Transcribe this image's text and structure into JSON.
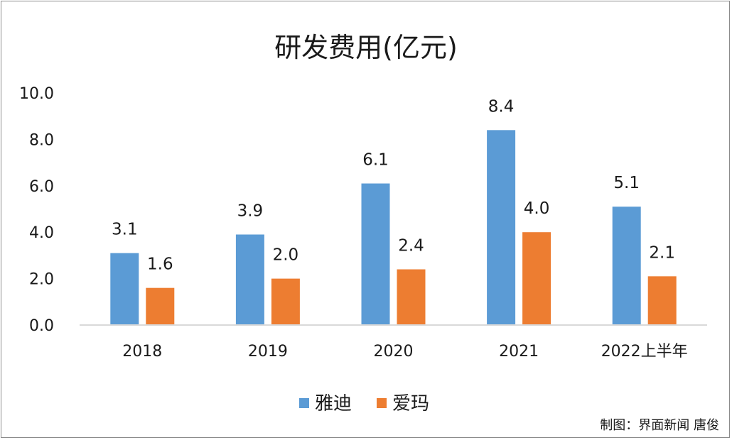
{
  "chart_data": {
    "type": "bar",
    "title": "研发费用(亿元)",
    "categories": [
      "2018",
      "2019",
      "2020",
      "2021",
      "2022上半年"
    ],
    "series": [
      {
        "name": "雅迪",
        "color": "#5b9bd5",
        "values": [
          3.1,
          3.9,
          6.1,
          8.4,
          5.1
        ],
        "labels": [
          "3.1",
          "3.9",
          "6.1",
          "8.4",
          "5.1"
        ]
      },
      {
        "name": "爱玛",
        "color": "#ed7d31",
        "values": [
          1.6,
          2.0,
          2.4,
          4.0,
          2.1
        ],
        "labels": [
          "1.6",
          "2.0",
          "2.4",
          "4.0",
          "2.1"
        ]
      }
    ],
    "yticks": [
      "0.0",
      "2.0",
      "4.0",
      "6.0",
      "8.0",
      "10.0"
    ],
    "ylim": [
      0,
      10
    ],
    "xlabel": "",
    "ylabel": "",
    "grid": false,
    "legend": "bottom-center"
  },
  "credit": "制图：界面新闻 唐俊"
}
